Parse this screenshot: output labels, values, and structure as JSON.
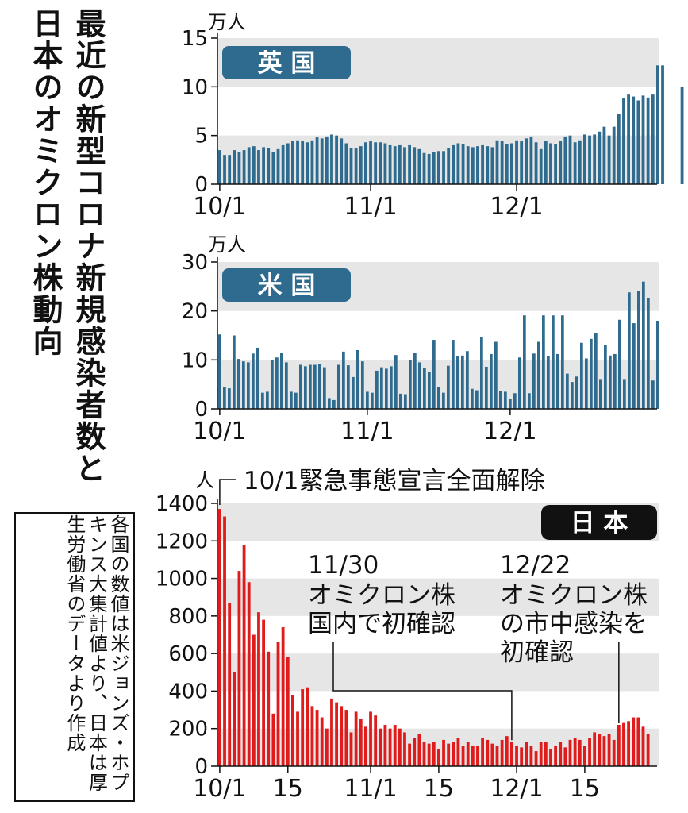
{
  "title": {
    "line1": "最近の新型コロナ新規感染者数と",
    "line2": "日本のオミクロン株動向"
  },
  "source_note": "各国の数値は米ジョンズ・ホプキンス大集計値より、日本は厚生労働省のデータより作成",
  "colors": {
    "uk": "#2e6b8f",
    "us": "#2e6b8f",
    "jp": "#e01b1b",
    "pill_uk_us": "#2e6b8f",
    "pill_jp": "#111111",
    "band": "#e6e6e6"
  },
  "chart_data": [
    {
      "id": "uk",
      "type": "bar",
      "label": "英 国",
      "unit": "万人",
      "ylim": [
        0,
        15
      ],
      "yticks": [
        0,
        5,
        10,
        15
      ],
      "xticks": [
        {
          "day": 0,
          "label": "10/1"
        },
        {
          "day": 31,
          "label": "11/1"
        },
        {
          "day": 61,
          "label": "12/1"
        }
      ],
      "values": [
        3.5,
        3.0,
        3.0,
        3.5,
        3.3,
        3.5,
        3.8,
        3.9,
        3.5,
        3.8,
        3.7,
        3.3,
        3.6,
        4.0,
        4.2,
        4.4,
        4.5,
        4.4,
        4.3,
        4.5,
        4.8,
        4.7,
        4.9,
        5.1,
        5.0,
        4.7,
        4.2,
        3.7,
        3.7,
        3.9,
        4.3,
        4.4,
        4.3,
        4.3,
        4.2,
        4.0,
        3.9,
        4.0,
        3.8,
        4.0,
        3.8,
        3.6,
        3.2,
        3.1,
        3.3,
        3.4,
        3.4,
        3.7,
        4.0,
        4.2,
        4.1,
        3.9,
        3.8,
        3.9,
        4.0,
        3.9,
        3.8,
        4.5,
        4.4,
        4.1,
        4.2,
        4.5,
        4.4,
        4.7,
        4.9,
        4.3,
        3.6,
        4.4,
        4.2,
        4.1,
        4.4,
        4.9,
        5.0,
        4.3,
        4.5,
        5.1,
        5.0,
        5.1,
        5.4,
        5.9,
        5.0,
        5.9,
        7.2,
        8.8,
        9.2,
        9.0,
        8.6,
        9.1,
        8.9,
        9.2,
        12.2,
        12.2,
        0.0,
        0.0,
        0.0,
        10.0
      ]
    },
    {
      "id": "us",
      "type": "bar",
      "label": "米 国",
      "unit": "万人",
      "ylim": [
        0,
        30
      ],
      "yticks": [
        0,
        10,
        20,
        30
      ],
      "xticks": [
        {
          "day": 0,
          "label": "10/1"
        },
        {
          "day": 31,
          "label": "11/1"
        },
        {
          "day": 61,
          "label": "12/1"
        }
      ],
      "values": [
        15.2,
        4.4,
        4.2,
        15.0,
        10.2,
        9.7,
        9.5,
        11.3,
        12.5,
        3.3,
        3.5,
        10.0,
        10.5,
        11.5,
        9.5,
        3.5,
        3.3,
        9.0,
        8.7,
        9.0,
        9.0,
        9.2,
        8.5,
        2.2,
        1.8,
        9.0,
        11.7,
        8.9,
        6.5,
        12.0,
        9.7,
        3.5,
        3.3,
        7.8,
        8.5,
        8.2,
        8.7,
        11.0,
        3.1,
        3.0,
        10.0,
        11.5,
        9.5,
        8.3,
        7.5,
        14.1,
        4.4,
        3.3,
        8.8,
        14.1,
        10.7,
        10.9,
        11.8,
        4.1,
        3.8,
        14.7,
        8.6,
        11.2,
        13.7,
        3.7,
        3.5,
        2.0,
        3.2,
        10.5,
        19.1,
        3.2,
        11.3,
        13.7,
        19.1,
        10.8,
        19.1,
        11.2,
        19.1,
        7.2,
        5.5,
        6.6,
        13.5,
        10.3,
        14.3,
        15.5,
        6.1,
        13.1,
        10.9,
        11.2,
        18.2,
        6.1,
        23.8,
        17.5,
        24.0,
        26.0,
        22.7,
        5.8,
        18.0
      ]
    },
    {
      "id": "jp",
      "type": "bar",
      "label": "日 本",
      "unit": "人",
      "ylim": [
        0,
        1400
      ],
      "yticks": [
        0,
        200,
        400,
        600,
        800,
        1000,
        1200,
        1400
      ],
      "xticks": [
        {
          "day": 0,
          "label": "10/1"
        },
        {
          "day": 14,
          "label": "15"
        },
        {
          "day": 31,
          "label": "11/1"
        },
        {
          "day": 45,
          "label": "15"
        },
        {
          "day": 61,
          "label": "12/1"
        },
        {
          "day": 75,
          "label": "15"
        }
      ],
      "values": [
        1370,
        1330,
        870,
        500,
        1040,
        1180,
        980,
        700,
        820,
        780,
        610,
        280,
        660,
        740,
        580,
        380,
        290,
        410,
        420,
        320,
        300,
        260,
        200,
        360,
        340,
        320,
        300,
        180,
        290,
        250,
        210,
        290,
        270,
        200,
        220,
        200,
        220,
        200,
        180,
        120,
        150,
        170,
        130,
        120,
        130,
        90,
        140,
        120,
        130,
        150,
        110,
        130,
        110,
        110,
        150,
        140,
        120,
        110,
        140,
        160,
        130,
        110,
        100,
        130,
        110,
        80,
        130,
        130,
        90,
        110,
        130,
        100,
        140,
        150,
        140,
        110,
        150,
        180,
        170,
        160,
        170,
        140,
        220,
        230,
        240,
        260,
        260,
        210,
        170
      ],
      "annotations": [
        {
          "day": 0,
          "text": "10/1緊急事態宣言全面解除"
        },
        {
          "day": 60,
          "date": "11/30",
          "text": "オミクロン株\n国内で初確認"
        },
        {
          "day": 82,
          "date": "12/22",
          "text": "オミクロン株\nの市中感染を\n初確認"
        }
      ]
    }
  ]
}
